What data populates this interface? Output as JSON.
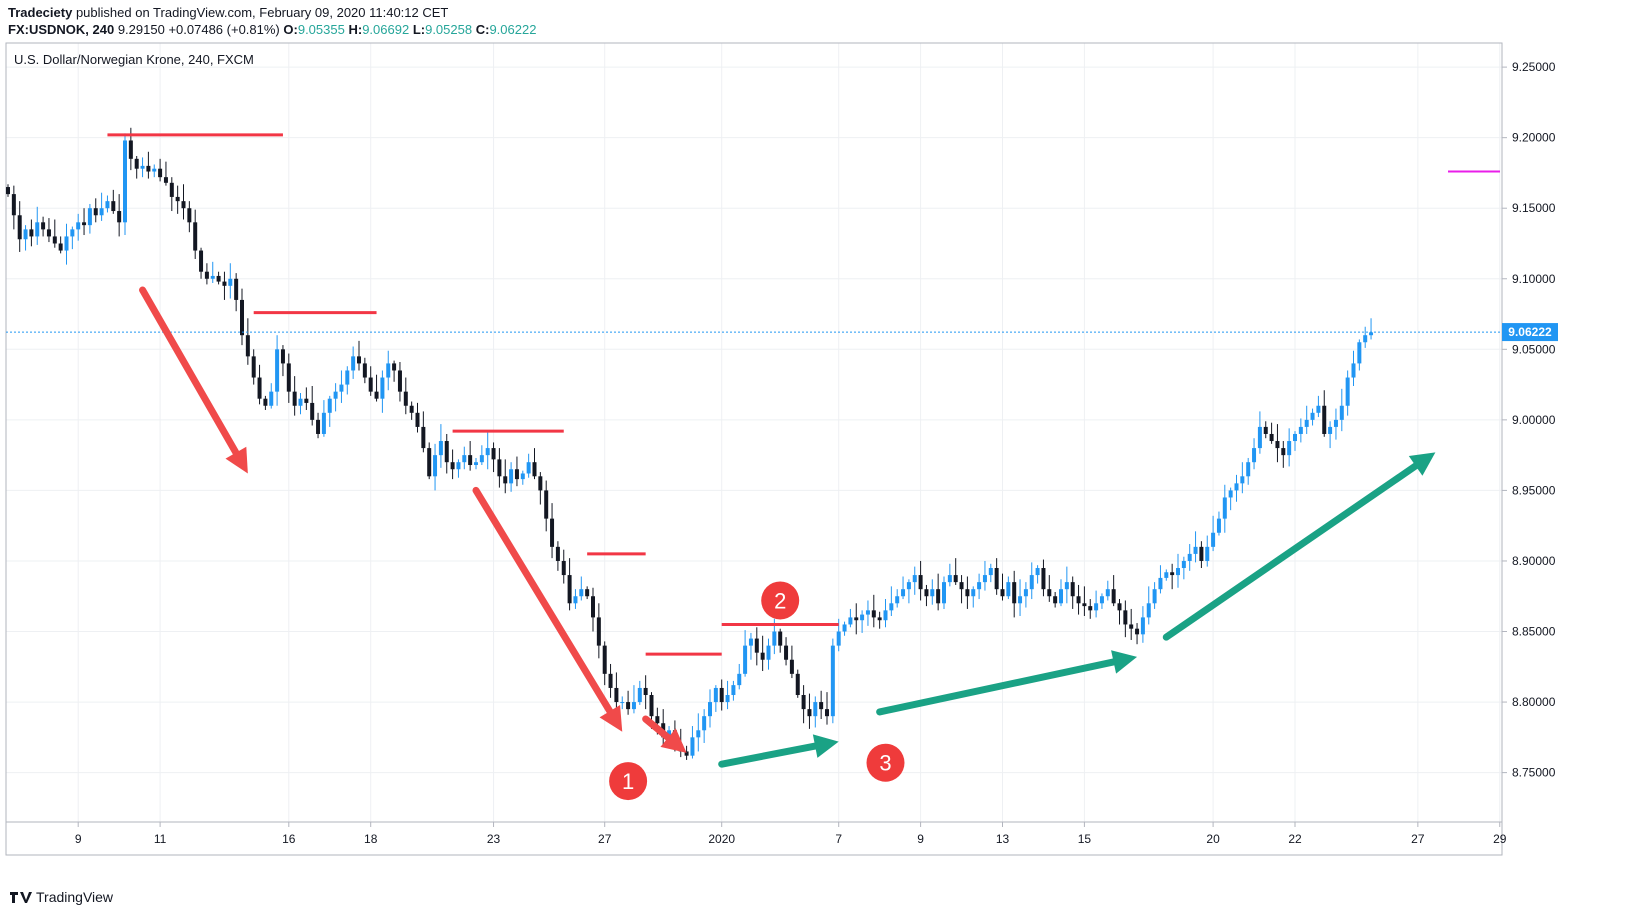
{
  "header": {
    "author": "Tradeciety",
    "published_text": "published on TradingView.com, February 09, 2020 11:40:12 CET",
    "symbol": "FX:USDNOK, 240",
    "last": "9.29150",
    "change": "+0.07486 (+0.81%)",
    "o_label": "O:",
    "o_value": "9.05355",
    "h_label": "H:",
    "h_value": "9.06692",
    "l_label": "L:",
    "l_value": "9.05258",
    "c_label": "C:",
    "c_value": "9.06222"
  },
  "footer": {
    "brand": "TradingView",
    "logo_icon": "tradingview-logo-icon"
  },
  "chart_data": {
    "type": "candlestick",
    "title": "U.S. Dollar/Norwegian Krone, 240, FXCM",
    "ylim": [
      8.715,
      9.26
    ],
    "y_ticks": [
      "9.25000",
      "9.20000",
      "9.15000",
      "9.10000",
      "9.05000",
      "9.00000",
      "8.95000",
      "8.90000",
      "8.85000",
      "8.80000",
      "8.75000"
    ],
    "y_tick_values": [
      9.25,
      9.2,
      9.15,
      9.1,
      9.05,
      9.0,
      8.95,
      8.9,
      8.85,
      8.8,
      8.75
    ],
    "x_ticks": [
      "9",
      "11",
      "16",
      "18",
      "23",
      "27",
      "2020",
      "7",
      "9",
      "13",
      "15",
      "20",
      "22",
      "27",
      "29"
    ],
    "n_bars": 240,
    "x_tick_bars": [
      12,
      26,
      48,
      62,
      83,
      102,
      122,
      142,
      156,
      170,
      184,
      206,
      220,
      241,
      255
    ],
    "last_price_label": "9.06222",
    "last_price": 9.06222,
    "colors": {
      "up": "#2196f3",
      "down": "#131722",
      "last_line": "#2196f3",
      "resistance": "#f23645",
      "down_arrow": "#f04a4a",
      "up_arrow": "#1aa285",
      "badge": "#ef3b3b",
      "magenta": "#e91ee9"
    },
    "closes": [
      9.16,
      9.145,
      9.128,
      9.135,
      9.13,
      9.14,
      9.135,
      9.13,
      9.125,
      9.12,
      9.13,
      9.135,
      9.14,
      9.138,
      9.15,
      9.145,
      9.15,
      9.155,
      9.148,
      9.14,
      9.198,
      9.185,
      9.178,
      9.18,
      9.176,
      9.178,
      9.172,
      9.168,
      9.158,
      9.155,
      9.15,
      9.14,
      9.12,
      9.105,
      9.1,
      9.102,
      9.098,
      9.095,
      9.1,
      9.085,
      9.06,
      9.045,
      9.03,
      9.015,
      9.01,
      9.02,
      9.05,
      9.04,
      9.02,
      9.01,
      9.015,
      9.012,
      9.0,
      8.99,
      9.005,
      9.015,
      9.02,
      9.025,
      9.035,
      9.045,
      9.04,
      9.03,
      9.02,
      9.015,
      9.03,
      9.04,
      9.035,
      9.02,
      9.01,
      9.005,
      8.995,
      8.98,
      8.96,
      8.975,
      8.985,
      8.97,
      8.965,
      8.97,
      8.975,
      8.968,
      8.97,
      8.975,
      8.98,
      8.972,
      8.96,
      8.955,
      8.965,
      8.958,
      8.962,
      8.97,
      8.96,
      8.95,
      8.93,
      8.91,
      8.9,
      8.89,
      8.87,
      8.875,
      8.88,
      8.875,
      8.86,
      8.84,
      8.82,
      8.81,
      8.8,
      8.8,
      8.795,
      8.8,
      8.81,
      8.805,
      8.79,
      8.785,
      8.775,
      8.78,
      8.77,
      8.765,
      8.762,
      8.775,
      8.78,
      8.79,
      8.8,
      8.81,
      8.8,
      8.805,
      8.812,
      8.82,
      8.84,
      8.845,
      8.835,
      8.83,
      8.84,
      8.85,
      8.84,
      8.83,
      8.82,
      8.805,
      8.795,
      8.79,
      8.8,
      8.795,
      8.79,
      8.84,
      8.85,
      8.855,
      8.86,
      8.858,
      8.862,
      8.865,
      8.86,
      8.858,
      8.865,
      8.87,
      8.875,
      8.88,
      8.885,
      8.89,
      8.88,
      8.875,
      8.88,
      8.87,
      8.885,
      8.89,
      8.885,
      8.88,
      8.875,
      8.88,
      8.885,
      8.89,
      8.895,
      8.88,
      8.875,
      8.885,
      8.87,
      8.875,
      8.88,
      8.89,
      8.895,
      8.88,
      8.875,
      8.87,
      8.88,
      8.885,
      8.875,
      8.87,
      8.868,
      8.865,
      8.87,
      8.875,
      8.88,
      8.87,
      8.865,
      8.855,
      8.852,
      8.848,
      8.86,
      8.87,
      8.88,
      8.888,
      8.892,
      8.89,
      8.895,
      8.9,
      8.905,
      8.91,
      8.9,
      8.91,
      8.92,
      8.93,
      8.945,
      8.95,
      8.955,
      8.96,
      8.97,
      8.98,
      8.995,
      8.99,
      8.985,
      8.98,
      8.975,
      8.985,
      8.99,
      8.995,
      9.0,
      9.005,
      9.01,
      8.99,
      8.995,
      9.0,
      9.01,
      9.03,
      9.04,
      9.055,
      9.06,
      9.062
    ]
  },
  "annotations": {
    "badge_1": "1",
    "badge_2": "2",
    "badge_3": "3"
  }
}
